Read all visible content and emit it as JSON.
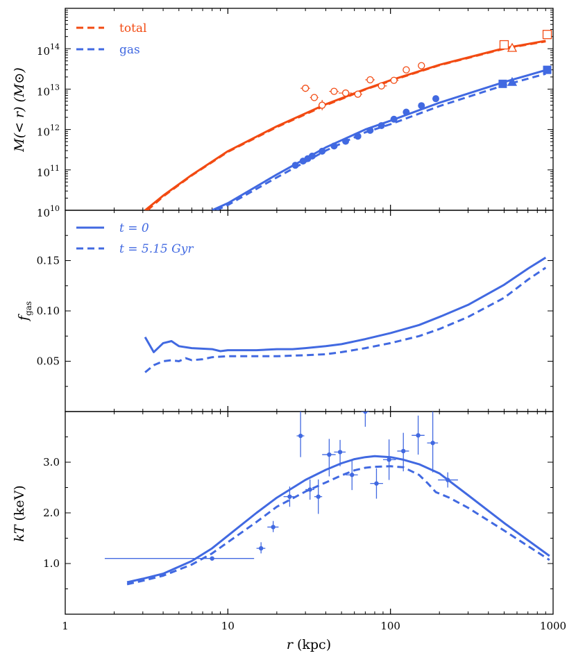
{
  "colors": {
    "total": "#f24a12",
    "gas": "#4169e1",
    "axis": "#000000"
  },
  "chart_data": [
    {
      "type": "line",
      "panel": "mass",
      "xscale": "log",
      "xlim": [
        1,
        1000
      ],
      "yscale": "log",
      "ylim": [
        10000000000.0,
        1000000000000000.0
      ],
      "ylabel": "M(< r) (M⊙)",
      "ylabel_parts": {
        "main": "M(< r)",
        "unit": "(M⊙)"
      },
      "yticks": [
        {
          "value": 10000000000.0,
          "label": "10",
          "exp": "10"
        },
        {
          "value": 100000000000.0,
          "label": "10",
          "exp": "11"
        },
        {
          "value": 1000000000000.0,
          "label": "10",
          "exp": "12"
        },
        {
          "value": 10000000000000.0,
          "label": "10",
          "exp": "13"
        },
        {
          "value": 100000000000000.0,
          "label": "10",
          "exp": "14"
        }
      ],
      "legend": [
        {
          "label": "total",
          "color_key": "total",
          "style": "dashed"
        },
        {
          "label": "gas",
          "color_key": "gas",
          "style": "dashed"
        }
      ],
      "series": [
        {
          "name": "total t=0",
          "color_key": "total",
          "style": "solid",
          "x": [
            3.1,
            4,
            6,
            10,
            20,
            40,
            70,
            100,
            200,
            500,
            900
          ],
          "y": [
            10000000000.0,
            23000000000.0,
            75000000000.0,
            290000000000.0,
            1200000000000.0,
            4200000000000.0,
            10000000000000.0,
            16500000000000.0,
            40000000000000.0,
            103000000000000.0,
            157000000000000.0
          ]
        },
        {
          "name": "total t=5.15 Gyr",
          "color_key": "total",
          "style": "dashed",
          "x": [
            3.2,
            4,
            6,
            10,
            20,
            40,
            70,
            100,
            200,
            500,
            900
          ],
          "y": [
            10000000000.0,
            22000000000.0,
            73000000000.0,
            280000000000.0,
            1150000000000.0,
            4000000000000.0,
            9800000000000.0,
            16000000000000.0,
            39000000000000.0,
            100000000000000.0,
            152000000000000.0
          ]
        },
        {
          "name": "gas t=0",
          "color_key": "gas",
          "style": "solid",
          "x": [
            8,
            10,
            20,
            40,
            70,
            100,
            200,
            500,
            900
          ],
          "y": [
            10000000000.0,
            15000000000.0,
            77000000000.0,
            360000000000.0,
            1000000000000.0,
            1650000000000.0,
            4600000000000.0,
            15000000000000.0,
            29500000000000.0
          ]
        },
        {
          "name": "gas t=5.15 Gyr",
          "color_key": "gas",
          "style": "dashed",
          "x": [
            8.5,
            10,
            20,
            40,
            70,
            100,
            200,
            500,
            900
          ],
          "y": [
            10000000000.0,
            13500000000.0,
            65000000000.0,
            300000000000.0,
            850000000000.0,
            1350000000000.0,
            3800000000000.0,
            12500000000000.0,
            24000000000000.0
          ]
        }
      ],
      "markers": [
        {
          "name": "total-obs",
          "color_key": "total",
          "shape": "hex-open",
          "points": [
            {
              "x": 30,
              "y": 10500000000000.0,
              "xerr": [
                28,
                32
              ]
            },
            {
              "x": 34,
              "y": 6200000000000.0,
              "xerr": [
                32,
                36
              ]
            },
            {
              "x": 38,
              "y": 4000000000000.0,
              "xerr": [
                36,
                40
              ],
              "yerr": [
                3000000000000.0,
                5400000000000.0
              ]
            },
            {
              "x": 45,
              "y": 8800000000000.0,
              "xerr": [
                42,
                48
              ]
            },
            {
              "x": 53,
              "y": 8000000000000.0,
              "xerr": [
                48,
                58
              ]
            },
            {
              "x": 63,
              "y": 7500000000000.0,
              "xerr": [
                58,
                67
              ]
            },
            {
              "x": 75,
              "y": 17000000000000.0,
              "xerr": [
                70,
                80
              ]
            },
            {
              "x": 88,
              "y": 12000000000000.0,
              "xerr": [
                82,
                95
              ]
            },
            {
              "x": 105,
              "y": 16500000000000.0,
              "xerr": [
                98,
                112
              ]
            }
          ]
        },
        {
          "name": "total-obs-circles",
          "color_key": "total",
          "shape": "circle-open",
          "points": [
            {
              "x": 125,
              "y": 30000000000000.0
            },
            {
              "x": 155,
              "y": 38000000000000.0
            }
          ]
        },
        {
          "name": "total-square",
          "color_key": "total",
          "shape": "square-open",
          "points": [
            {
              "x": 500,
              "y": 125000000000000.0
            },
            {
              "x": 920,
              "y": 225000000000000.0
            }
          ]
        },
        {
          "name": "total-triangle",
          "color_key": "total",
          "shape": "triangle-open",
          "points": [
            {
              "x": 560,
              "y": 105000000000000.0
            }
          ]
        },
        {
          "name": "gas-obs",
          "color_key": "gas",
          "shape": "circle-filled",
          "points": [
            {
              "x": 26,
              "y": 130000000000.0
            },
            {
              "x": 29,
              "y": 165000000000.0
            },
            {
              "x": 31,
              "y": 190000000000.0
            },
            {
              "x": 33,
              "y": 220000000000.0
            },
            {
              "x": 38,
              "y": 290000000000.0
            },
            {
              "x": 45,
              "y": 390000000000.0
            },
            {
              "x": 53,
              "y": 510000000000.0
            },
            {
              "x": 63,
              "y": 680000000000.0
            },
            {
              "x": 75,
              "y": 950000000000.0
            },
            {
              "x": 88,
              "y": 1250000000000.0
            },
            {
              "x": 105,
              "y": 1800000000000.0
            },
            {
              "x": 125,
              "y": 2700000000000.0
            },
            {
              "x": 155,
              "y": 3900000000000.0
            },
            {
              "x": 190,
              "y": 5800000000000.0
            }
          ]
        },
        {
          "name": "gas-square",
          "color_key": "gas",
          "shape": "square-filled",
          "points": [
            {
              "x": 490,
              "y": 13500000000000.0
            },
            {
              "x": 920,
              "y": 30000000000000.0
            }
          ]
        },
        {
          "name": "gas-triangle",
          "color_key": "gas",
          "shape": "triangle-filled",
          "points": [
            {
              "x": 560,
              "y": 15000000000000.0
            }
          ]
        }
      ]
    },
    {
      "type": "line",
      "panel": "fgas",
      "xscale": "log",
      "xlim": [
        1,
        1000
      ],
      "yscale": "linear",
      "ylim": [
        0,
        0.2
      ],
      "ylabel": "f_gas",
      "ylabel_parts": {
        "main": "f",
        "sub": "gas"
      },
      "yticks": [
        {
          "value": 0.05,
          "label": "0.05"
        },
        {
          "value": 0.1,
          "label": "0.10"
        },
        {
          "value": 0.15,
          "label": "0.15"
        }
      ],
      "legend": [
        {
          "label": "t = 0",
          "color_key": "gas",
          "style": "solid"
        },
        {
          "label": "t = 5.15 Gyr",
          "color_key": "gas",
          "style": "dashed"
        }
      ],
      "series": [
        {
          "name": "t = 0",
          "color_key": "gas",
          "style": "solid",
          "x": [
            3.1,
            3.5,
            4,
            4.5,
            5,
            6,
            8,
            9,
            10,
            12,
            15,
            20,
            25,
            30,
            40,
            50,
            70,
            100,
            150,
            200,
            300,
            500,
            700,
            900
          ],
          "y": [
            0.074,
            0.059,
            0.068,
            0.07,
            0.065,
            0.063,
            0.062,
            0.06,
            0.061,
            0.061,
            0.061,
            0.062,
            0.062,
            0.063,
            0.065,
            0.067,
            0.072,
            0.078,
            0.086,
            0.094,
            0.106,
            0.126,
            0.142,
            0.153
          ]
        },
        {
          "name": "t = 5.15 Gyr",
          "color_key": "gas",
          "style": "dashed",
          "x": [
            3.1,
            3.5,
            4,
            4.5,
            5,
            5.5,
            6,
            7,
            8,
            10,
            12,
            15,
            20,
            30,
            40,
            50,
            70,
            100,
            150,
            200,
            300,
            500,
            700,
            900
          ],
          "y": [
            0.039,
            0.046,
            0.05,
            0.051,
            0.05,
            0.053,
            0.051,
            0.052,
            0.054,
            0.055,
            0.055,
            0.055,
            0.055,
            0.056,
            0.057,
            0.059,
            0.063,
            0.068,
            0.075,
            0.082,
            0.094,
            0.113,
            0.131,
            0.143
          ]
        }
      ]
    },
    {
      "type": "line",
      "panel": "kT",
      "xscale": "log",
      "xlim": [
        1,
        1000
      ],
      "yscale": "linear",
      "ylim": [
        0,
        4
      ],
      "xlabel": "r (kpc)",
      "xlabel_parts": {
        "main": "r",
        "unit": "(kpc)"
      },
      "ylabel": "kT (keV)",
      "ylabel_parts": {
        "main": "kT",
        "unit": "(keV)"
      },
      "xticks": [
        {
          "value": 1,
          "label": "1"
        },
        {
          "value": 10,
          "label": "10"
        },
        {
          "value": 100,
          "label": "100"
        },
        {
          "value": 1000,
          "label": "1000"
        }
      ],
      "yticks": [
        {
          "value": 1.0,
          "label": "1.0"
        },
        {
          "value": 2.0,
          "label": "2.0"
        },
        {
          "value": 3.0,
          "label": "3.0"
        }
      ],
      "series": [
        {
          "name": "t = 0",
          "color_key": "gas",
          "style": "solid",
          "x": [
            2.4,
            3,
            4,
            6,
            8,
            10,
            15,
            20,
            30,
            40,
            50,
            60,
            70,
            80,
            100,
            120,
            150,
            200,
            300,
            500,
            950
          ],
          "y": [
            0.63,
            0.7,
            0.8,
            1.05,
            1.3,
            1.55,
            2.0,
            2.3,
            2.65,
            2.85,
            2.98,
            3.06,
            3.1,
            3.12,
            3.1,
            3.05,
            2.96,
            2.78,
            2.35,
            1.8,
            1.15
          ]
        },
        {
          "name": "t = 5.15 Gyr",
          "color_key": "gas",
          "style": "dashed",
          "x": [
            2.4,
            3,
            4,
            6,
            8,
            10,
            15,
            20,
            30,
            40,
            50,
            60,
            70,
            80,
            100,
            120,
            150,
            170,
            190,
            230,
            300,
            500,
            950
          ],
          "y": [
            0.59,
            0.66,
            0.76,
            0.98,
            1.2,
            1.42,
            1.82,
            2.12,
            2.42,
            2.6,
            2.74,
            2.84,
            2.89,
            2.91,
            2.92,
            2.9,
            2.75,
            2.58,
            2.41,
            2.3,
            2.1,
            1.65,
            1.07
          ]
        }
      ],
      "points": [
        {
          "x": 8,
          "y": 1.1,
          "xerr": [
            1.75,
            14.5
          ],
          "yerr": [
            1.1,
            1.1
          ]
        },
        {
          "x": 16,
          "y": 1.3,
          "xerr": [
            15,
            17
          ],
          "yerr": [
            1.2,
            1.42
          ]
        },
        {
          "x": 19,
          "y": 1.72,
          "xerr": [
            17.5,
            20.5
          ],
          "yerr": [
            1.62,
            1.84
          ]
        },
        {
          "x": 24,
          "y": 2.32,
          "xerr": [
            22,
            26
          ],
          "yerr": [
            2.12,
            2.52
          ]
        },
        {
          "x": 28,
          "y": 3.52,
          "xerr": [
            26.5,
            29.5
          ],
          "yerr": [
            3.1,
            4.0
          ]
        },
        {
          "x": 32,
          "y": 2.46,
          "xerr": [
            30,
            34
          ],
          "yerr": [
            2.26,
            2.66
          ]
        },
        {
          "x": 36,
          "y": 2.32,
          "xerr": [
            34,
            38
          ],
          "yerr": [
            1.98,
            2.66
          ]
        },
        {
          "x": 42,
          "y": 3.15,
          "xerr": [
            38,
            46
          ],
          "yerr": [
            2.72,
            3.46
          ]
        },
        {
          "x": 49,
          "y": 3.2,
          "xerr": [
            45,
            53
          ],
          "yerr": [
            2.92,
            3.44
          ]
        },
        {
          "x": 58,
          "y": 2.75,
          "xerr": [
            53,
            63
          ],
          "yerr": [
            2.45,
            3.05
          ]
        },
        {
          "x": 70,
          "y": 4.0,
          "xerr": [
            66,
            74
          ],
          "yerr": [
            3.7,
            4.0
          ]
        },
        {
          "x": 82,
          "y": 2.58,
          "xerr": [
            75,
            90
          ],
          "yerr": [
            2.28,
            2.88
          ]
        },
        {
          "x": 98,
          "y": 3.05,
          "xerr": [
            90,
            108
          ],
          "yerr": [
            2.65,
            3.45
          ]
        },
        {
          "x": 120,
          "y": 3.22,
          "xerr": [
            110,
            130
          ],
          "yerr": [
            2.82,
            3.58
          ]
        },
        {
          "x": 148,
          "y": 3.53,
          "xerr": [
            135,
            162
          ],
          "yerr": [
            3.15,
            3.92
          ]
        },
        {
          "x": 182,
          "y": 3.38,
          "xerr": [
            168,
            196
          ],
          "yerr": [
            2.8,
            4.0
          ]
        },
        {
          "x": 225,
          "y": 2.65,
          "xerr": [
            196,
            260
          ],
          "yerr": [
            2.5,
            2.8
          ]
        }
      ]
    }
  ]
}
